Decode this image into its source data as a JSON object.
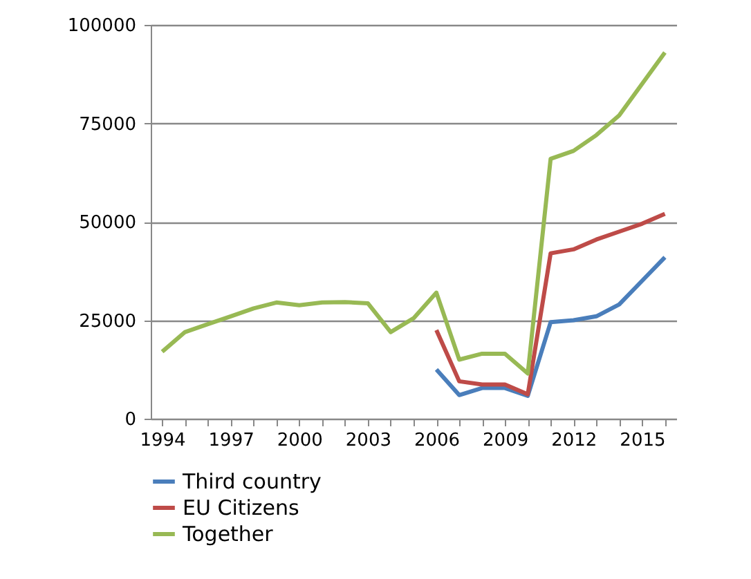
{
  "chart_data": {
    "type": "line",
    "x": [
      1994,
      1995,
      1996,
      1997,
      1998,
      1999,
      2000,
      2001,
      2002,
      2003,
      2004,
      2005,
      2006,
      2007,
      2008,
      2009,
      2010,
      2011,
      2012,
      2013,
      2014,
      2015,
      2016
    ],
    "series": [
      {
        "name": "Third country",
        "color": "#4a7ebb",
        "values": [
          null,
          null,
          null,
          null,
          null,
          null,
          null,
          null,
          null,
          null,
          null,
          null,
          12500,
          6000,
          7800,
          7800,
          5800,
          24500,
          25000,
          26000,
          29000,
          35000,
          41000
        ]
      },
      {
        "name": "EU Citizens",
        "color": "#be4b48",
        "values": [
          null,
          null,
          null,
          null,
          null,
          null,
          null,
          null,
          null,
          null,
          null,
          null,
          22500,
          9500,
          8700,
          8700,
          6200,
          42000,
          43000,
          45500,
          47500,
          49500,
          52000
        ]
      },
      {
        "name": "Together",
        "color": "#98b954",
        "values": [
          17000,
          22000,
          24000,
          26000,
          28000,
          29500,
          28800,
          29500,
          29600,
          29300,
          22000,
          25500,
          32000,
          15000,
          16500,
          16500,
          11500,
          66000,
          68000,
          72000,
          77000,
          85000,
          93000
        ]
      }
    ],
    "xlim": [
      1993.5,
      2016.5
    ],
    "xticks": [
      1994,
      {
        "value": 1995,
        "label": null
      },
      {
        "value": 1996,
        "label": null
      },
      1997,
      {
        "value": 1998,
        "label": null
      },
      {
        "value": 1999,
        "label": null
      },
      2000,
      {
        "value": 2001,
        "label": null
      },
      {
        "value": 2002,
        "label": null
      },
      2003,
      {
        "value": 2004,
        "label": null
      },
      {
        "value": 2005,
        "label": null
      },
      2006,
      {
        "value": 2007,
        "label": null
      },
      {
        "value": 2008,
        "label": null
      },
      2009,
      {
        "value": 2010,
        "label": null
      },
      {
        "value": 2011,
        "label": null
      },
      2012,
      {
        "value": 2013,
        "label": null
      },
      {
        "value": 2014,
        "label": null
      },
      2015,
      {
        "value": 2016,
        "label": null
      }
    ],
    "ylim": [
      0,
      100000
    ],
    "yticks": [
      0,
      25000,
      50000,
      75000,
      100000
    ],
    "grid": "y",
    "legend": "bottom",
    "marker": "none",
    "line_style": "solid"
  }
}
